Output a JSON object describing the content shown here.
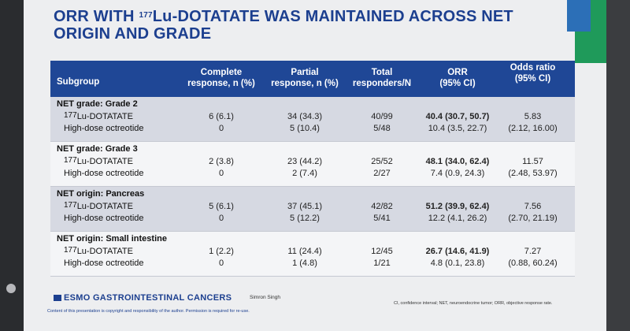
{
  "title_part1": "ORR WITH ",
  "title_sup": "177",
  "title_part2": "Lu-DOTATATE WAS MAINTAINED ACROSS NET",
  "title_line2": "ORIGIN AND GRADE",
  "header": {
    "subgroup": "Subgroup",
    "complete_l1": "Complete",
    "complete_l2": "response, n (%)",
    "partial_l1": "Partial",
    "partial_l2": "response, n (%)",
    "total_l1": "Total",
    "total_l2": "responders/N",
    "orr_l1": "ORR",
    "orr_l2": "(95% CI)",
    "odds_l1": "Odds ratio",
    "odds_l2": "(95% CI)"
  },
  "groups": [
    {
      "label": "NET grade: Grade 2",
      "rows": [
        {
          "sup": "177",
          "arm": "Lu-DOTATATE",
          "complete": "6 (6.1)",
          "partial": "34 (34.3)",
          "total": "40/99",
          "orr": "40.4 (30.7, 50.7)"
        },
        {
          "arm": "High-dose octreotide",
          "complete": "0",
          "partial": "5 (10.4)",
          "total": "5/48",
          "orr": "10.4 (3.5, 22.7)"
        }
      ],
      "odds": "5.83",
      "odds_ci": "(2.12, 16.00)"
    },
    {
      "label": "NET grade: Grade 3",
      "rows": [
        {
          "sup": "177",
          "arm": "Lu-DOTATATE",
          "complete": "2 (3.8)",
          "partial": "23 (44.2)",
          "total": "25/52",
          "orr": "48.1 (34.0, 62.4)"
        },
        {
          "arm": "High-dose octreotide",
          "complete": "0",
          "partial": "2 (7.4)",
          "total": "2/27",
          "orr": "7.4 (0.9, 24.3)"
        }
      ],
      "odds": "11.57",
      "odds_ci": "(2.48, 53.97)"
    },
    {
      "label": "NET origin: Pancreas",
      "rows": [
        {
          "sup": "177",
          "arm": "Lu-DOTATATE",
          "complete": "5 (6.1)",
          "partial": "37 (45.1)",
          "total": "42/82",
          "orr": "51.2 (39.9, 62.4)"
        },
        {
          "arm": "High-dose octreotide",
          "complete": "0",
          "partial": "5 (12.2)",
          "total": "5/41",
          "orr": "12.2 (4.1, 26.2)"
        }
      ],
      "odds": "7.56",
      "odds_ci": "(2.70, 21.19)"
    },
    {
      "label": "NET origin: Small intestine",
      "rows": [
        {
          "sup": "177",
          "arm": "Lu-DOTATATE",
          "complete": "1 (2.2)",
          "partial": "11 (24.4)",
          "total": "12/45",
          "orr": "26.7 (14.6, 41.9)"
        },
        {
          "arm": "High-dose octreotide",
          "complete": "0",
          "partial": "1 (4.8)",
          "total": "1/21",
          "orr": "4.8 (0.1, 23.8)"
        }
      ],
      "odds": "7.27",
      "odds_ci": "(0.88, 60.24)"
    }
  ],
  "footer": {
    "brand": "ESMO GASTROINTESTINAL CANCERS",
    "presenter": "Simron Singh",
    "abbreviations": "CI, confidence interval; NET, neuroendocrine tumor; ORR, objective response rate.",
    "copyright": "Content of this presentation is copyright and responsibility of the author. Permission is required for re-use."
  },
  "colors": {
    "header_bg": "#1f4796",
    "title": "#1c3f8f",
    "shade_row": "#d6d9e2"
  }
}
